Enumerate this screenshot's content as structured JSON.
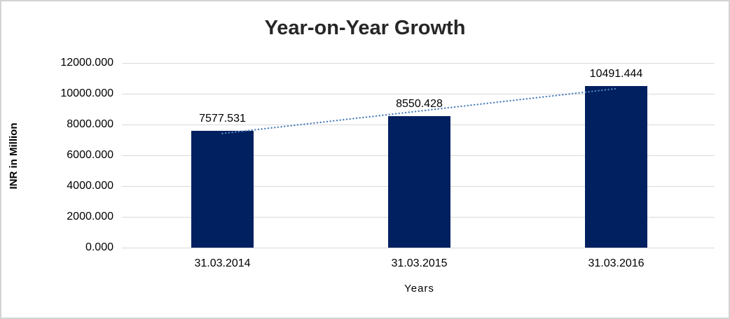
{
  "chart_data": {
    "type": "bar",
    "title": "Year-on-Year Growth",
    "xlabel": "Years",
    "ylabel": "INR in Million",
    "categories": [
      "31.03.2014",
      "31.03.2015",
      "31.03.2016"
    ],
    "values": [
      7577.531,
      8550.428,
      10491.444
    ],
    "value_labels": [
      "7577.531",
      "8550.428",
      "10491.444"
    ],
    "ylim": [
      0,
      12000
    ],
    "y_tick_values": [
      12000,
      10000,
      8000,
      6000,
      4000,
      2000,
      0
    ],
    "y_tick_labels": [
      "12000.000",
      "10000.000",
      "8000.000",
      "6000.000",
      "4000.000",
      "2000.000",
      "0.000"
    ],
    "grid": "horizontal",
    "legend": "none",
    "trendline": {
      "type": "linear",
      "style": "dotted",
      "start_value": 7416.2,
      "end_value": 10330.1
    }
  },
  "colors": {
    "bar": "#002060",
    "trendline": "#4F81BD",
    "gridline": "#D9D9D9",
    "axis_line": "#D9D9D9",
    "title_text": "#262626",
    "label_text": "#000000",
    "frame_border": "#D3D3D3",
    "background": "#FFFFFF"
  }
}
